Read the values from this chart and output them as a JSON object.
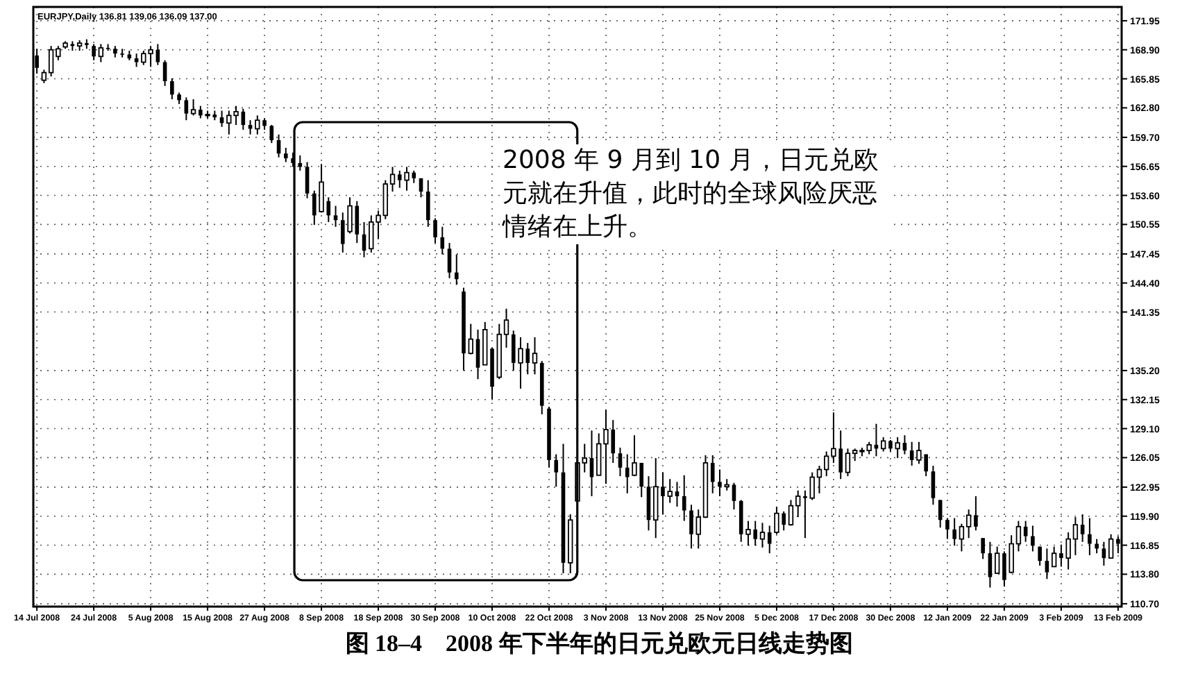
{
  "chart_data": {
    "type": "candlestick",
    "title": "图 18–4　2008 年下半年的日元兑欧元日线走势图",
    "annotations": [
      "EURJPY,Daily 136.81 139.06 136.09 137.00",
      "2008 年 9 月到 10 月，日元兑欧元就在升值，此时的全球风险厌恶情绪在上升。"
    ],
    "color": "#000000",
    "grid": true,
    "ylim": [
      110.4,
      173.4
    ],
    "yticks": [
      171.95,
      {
        "value": 168.9,
        "label": "168.90"
      },
      165.85,
      {
        "value": 162.8,
        "label": "162.80"
      },
      {
        "value": 159.7,
        "label": "159.70"
      },
      156.65,
      {
        "value": 153.6,
        "label": "153.60"
      },
      150.55,
      147.45,
      {
        "value": 144.4,
        "label": "144.40"
      },
      141.35,
      {
        "value": 135.2,
        "label": "135.20"
      },
      132.15,
      {
        "value": 129.1,
        "label": "129.10"
      },
      126.05,
      122.95,
      {
        "value": 119.9,
        "label": "119.90"
      },
      116.85,
      {
        "value": 113.8,
        "label": "113.80"
      },
      {
        "value": 110.7,
        "label": "110.70"
      }
    ],
    "categories": [
      "14 Jul 2008",
      null,
      null,
      null,
      null,
      null,
      null,
      null,
      "24 Jul 2008",
      null,
      null,
      null,
      null,
      null,
      null,
      null,
      "5 Aug 2008",
      null,
      null,
      null,
      null,
      null,
      null,
      null,
      "15 Aug 2008",
      null,
      null,
      null,
      null,
      null,
      null,
      null,
      "27 Aug 2008",
      null,
      null,
      null,
      null,
      null,
      null,
      null,
      "8 Sep 2008",
      null,
      null,
      null,
      null,
      null,
      null,
      null,
      "18 Sep 2008",
      null,
      null,
      null,
      null,
      null,
      null,
      null,
      "30 Sep 2008",
      null,
      null,
      null,
      null,
      null,
      null,
      null,
      "10 Oct 2008",
      null,
      null,
      null,
      null,
      null,
      null,
      null,
      "22 Oct 2008",
      null,
      null,
      null,
      null,
      null,
      null,
      null,
      "3 Nov 2008",
      null,
      null,
      null,
      null,
      null,
      null,
      null,
      "13 Nov 2008",
      null,
      null,
      null,
      null,
      null,
      null,
      null,
      "25 Nov 2008",
      null,
      null,
      null,
      null,
      null,
      null,
      null,
      "5 Dec 2008",
      null,
      null,
      null,
      null,
      null,
      null,
      null,
      "17 Dec 2008",
      null,
      null,
      null,
      null,
      null,
      null,
      null,
      "30 Dec 2008",
      null,
      null,
      null,
      null,
      null,
      null,
      null,
      "12 Jan 2009",
      null,
      null,
      null,
      null,
      null,
      null,
      null,
      "22 Jan 2009",
      null,
      null,
      null,
      null,
      null,
      null,
      null,
      "3 Feb 2009",
      null,
      null,
      null,
      null,
      null,
      null,
      null,
      "13 Feb 2009"
    ],
    "ohlc": [
      [
        168.3,
        169.0,
        166.4,
        167.0
      ],
      [
        165.7,
        166.8,
        165.4,
        166.5
      ],
      [
        166.5,
        169.3,
        166.1,
        168.9
      ],
      [
        168.2,
        169.3,
        167.8,
        169.0
      ],
      [
        169.2,
        169.8,
        169.0,
        169.6
      ],
      [
        169.5,
        169.8,
        168.8,
        169.3
      ],
      [
        169.3,
        169.9,
        168.8,
        169.6
      ],
      [
        169.6,
        170.0,
        169.0,
        169.4
      ],
      [
        169.3,
        169.5,
        167.8,
        168.2
      ],
      [
        168.2,
        169.5,
        167.6,
        169.1
      ],
      [
        169.1,
        169.5,
        168.8,
        169.0
      ],
      [
        169.0,
        169.3,
        168.1,
        168.5
      ],
      [
        168.5,
        169.0,
        168.1,
        168.4
      ],
      [
        168.4,
        168.8,
        167.8,
        168.0
      ],
      [
        168.0,
        168.5,
        167.1,
        167.6
      ],
      [
        167.6,
        168.8,
        167.3,
        168.5
      ],
      [
        168.5,
        169.3,
        167.1,
        168.9
      ],
      [
        168.9,
        169.5,
        167.3,
        167.6
      ],
      [
        167.6,
        167.8,
        165.1,
        165.6
      ],
      [
        165.6,
        165.9,
        163.7,
        164.2
      ],
      [
        164.2,
        164.4,
        163.2,
        163.6
      ],
      [
        163.6,
        163.9,
        161.5,
        162.2
      ],
      [
        162.2,
        163.7,
        162.0,
        162.6
      ],
      [
        162.6,
        163.0,
        161.7,
        162.0
      ],
      [
        162.0,
        162.5,
        161.7,
        162.1
      ],
      [
        162.1,
        162.5,
        161.5,
        161.8
      ],
      [
        161.8,
        162.5,
        160.8,
        161.2
      ],
      [
        161.2,
        162.5,
        160.0,
        162.0
      ],
      [
        162.0,
        163.0,
        161.0,
        162.4
      ],
      [
        162.4,
        162.7,
        160.5,
        161.0
      ],
      [
        161.0,
        161.5,
        160.0,
        160.6
      ],
      [
        160.6,
        162.0,
        160.0,
        161.5
      ],
      [
        161.5,
        161.7,
        160.5,
        160.9
      ],
      [
        160.9,
        161.0,
        159.1,
        159.4
      ],
      [
        159.4,
        160.0,
        157.6,
        158.0
      ],
      [
        158.0,
        158.6,
        157.1,
        157.5
      ],
      [
        157.5,
        158.1,
        156.6,
        157.0
      ],
      [
        157.0,
        157.8,
        156.2,
        156.6
      ],
      [
        156.6,
        157.1,
        153.3,
        153.8
      ],
      [
        153.8,
        154.1,
        150.5,
        151.5
      ],
      [
        151.9,
        156.9,
        151.8,
        155.0
      ],
      [
        153.0,
        153.4,
        150.8,
        151.5
      ],
      [
        151.5,
        152.5,
        150.3,
        151.0
      ],
      [
        151.0,
        151.8,
        147.6,
        148.5
      ],
      [
        149.8,
        153.4,
        149.6,
        152.5
      ],
      [
        152.5,
        153.0,
        148.6,
        149.5
      ],
      [
        149.5,
        150.8,
        147.1,
        147.8
      ],
      [
        148.0,
        151.5,
        147.6,
        150.8
      ],
      [
        150.8,
        152.0,
        149.0,
        151.5
      ],
      [
        151.5,
        155.2,
        151.1,
        154.8
      ],
      [
        154.8,
        156.6,
        154.0,
        155.8
      ],
      [
        155.8,
        156.2,
        154.4,
        155.2
      ],
      [
        155.2,
        156.6,
        154.1,
        156.0
      ],
      [
        156.0,
        156.2,
        154.9,
        155.4
      ],
      [
        155.4,
        155.4,
        153.4,
        154.0
      ],
      [
        154.0,
        155.2,
        150.3,
        151.0
      ],
      [
        151.0,
        151.2,
        148.6,
        149.2
      ],
      [
        149.2,
        150.3,
        147.4,
        148.0
      ],
      [
        148.0,
        148.6,
        144.9,
        145.5
      ],
      [
        145.5,
        147.4,
        144.2,
        144.8
      ],
      [
        143.5,
        143.9,
        135.2,
        137.0
      ],
      [
        137.0,
        140.1,
        136.9,
        138.5
      ],
      [
        138.5,
        139.5,
        134.3,
        135.5
      ],
      [
        135.8,
        140.3,
        135.8,
        139.5
      ],
      [
        137.5,
        137.6,
        132.2,
        133.5
      ],
      [
        134.5,
        140.1,
        134.3,
        139.0
      ],
      [
        139.0,
        141.7,
        137.6,
        140.5
      ],
      [
        139.0,
        139.4,
        135.2,
        136.0
      ],
      [
        136.0,
        138.7,
        133.3,
        137.5
      ],
      [
        137.5,
        138.1,
        134.8,
        136.0
      ],
      [
        136.0,
        138.7,
        134.8,
        137.0
      ],
      [
        136.0,
        136.2,
        130.6,
        131.5
      ],
      [
        131.2,
        131.4,
        125.0,
        125.8
      ],
      [
        125.8,
        126.4,
        123.0,
        124.5
      ],
      [
        124.5,
        127.5,
        113.9,
        115.0
      ],
      [
        115.0,
        120.1,
        113.9,
        119.5
      ],
      [
        121.5,
        127.1,
        121.3,
        125.5
      ],
      [
        125.5,
        127.5,
        124.5,
        126.0
      ],
      [
        126.0,
        128.9,
        122.0,
        124.0
      ],
      [
        124.2,
        128.6,
        124.2,
        127.5
      ],
      [
        127.5,
        131.1,
        123.3,
        129.0
      ],
      [
        129.0,
        130.0,
        125.5,
        126.5
      ],
      [
        126.5,
        127.1,
        124.1,
        125.0
      ],
      [
        125.0,
        126.4,
        122.3,
        124.0
      ],
      [
        124.2,
        128.4,
        124.1,
        125.5
      ],
      [
        125.5,
        125.5,
        121.9,
        123.0
      ],
      [
        123.0,
        124.1,
        118.4,
        119.5
      ],
      [
        119.5,
        126.0,
        117.6,
        123.0
      ],
      [
        123.0,
        124.5,
        120.1,
        122.0
      ],
      [
        122.0,
        123.8,
        121.3,
        122.5
      ],
      [
        122.5,
        123.5,
        120.9,
        122.0
      ],
      [
        122.0,
        124.2,
        119.4,
        120.5
      ],
      [
        120.5,
        121.1,
        116.5,
        118.0
      ],
      [
        118.0,
        120.6,
        116.5,
        119.8
      ],
      [
        119.8,
        126.3,
        119.7,
        125.5
      ],
      [
        125.5,
        126.3,
        122.3,
        123.5
      ],
      [
        123.5,
        124.8,
        122.0,
        123.0
      ],
      [
        123.0,
        123.8,
        122.6,
        123.2
      ],
      [
        123.2,
        123.4,
        120.6,
        121.5
      ],
      [
        121.5,
        121.6,
        117.2,
        118.0
      ],
      [
        118.0,
        119.4,
        116.8,
        118.5
      ],
      [
        118.5,
        119.4,
        116.8,
        117.5
      ],
      [
        117.5,
        119.2,
        116.6,
        118.2
      ],
      [
        118.2,
        118.9,
        116.0,
        117.0
      ],
      [
        118.2,
        120.9,
        118.0,
        120.2
      ],
      [
        120.2,
        120.4,
        118.4,
        119.0
      ],
      [
        119.0,
        121.6,
        118.9,
        121.0
      ],
      [
        121.0,
        122.6,
        119.8,
        122.0
      ],
      [
        122.0,
        122.6,
        117.6,
        121.8
      ],
      [
        121.8,
        124.5,
        121.6,
        124.0
      ],
      [
        124.0,
        125.2,
        122.3,
        124.8
      ],
      [
        124.8,
        126.7,
        124.1,
        126.2
      ],
      [
        126.2,
        130.8,
        125.5,
        127.0
      ],
      [
        127.0,
        128.9,
        123.8,
        124.5
      ],
      [
        124.5,
        127.0,
        124.1,
        126.5
      ],
      [
        126.5,
        127.0,
        125.7,
        126.8
      ],
      [
        126.8,
        127.1,
        126.2,
        126.8
      ],
      [
        126.8,
        127.7,
        126.4,
        127.4
      ],
      [
        127.4,
        129.6,
        126.2,
        127.0
      ],
      [
        127.0,
        128.2,
        126.7,
        127.8
      ],
      [
        127.8,
        127.9,
        126.7,
        127.0
      ],
      [
        127.0,
        128.2,
        126.0,
        127.6
      ],
      [
        127.6,
        128.4,
        126.4,
        126.8
      ],
      [
        126.8,
        127.7,
        125.2,
        125.8
      ],
      [
        125.8,
        127.7,
        125.4,
        126.8
      ],
      [
        126.4,
        126.4,
        124.1,
        124.6
      ],
      [
        124.6,
        125.2,
        121.1,
        121.8
      ],
      [
        121.6,
        121.6,
        118.7,
        119.5
      ],
      [
        119.5,
        119.7,
        117.5,
        118.5
      ],
      [
        118.5,
        119.7,
        116.8,
        117.5
      ],
      [
        117.5,
        119.1,
        116.2,
        118.8
      ],
      [
        118.8,
        120.6,
        117.6,
        120.0
      ],
      [
        120.0,
        122.0,
        118.4,
        118.8
      ],
      [
        117.6,
        117.6,
        115.4,
        116.0
      ],
      [
        116.0,
        117.2,
        112.4,
        113.5
      ],
      [
        113.9,
        116.7,
        113.9,
        116.0
      ],
      [
        116.0,
        116.2,
        112.5,
        113.2
      ],
      [
        114.0,
        117.9,
        113.9,
        117.0
      ],
      [
        117.0,
        119.4,
        116.2,
        118.8
      ],
      [
        118.8,
        119.4,
        117.2,
        117.8
      ],
      [
        117.8,
        118.9,
        116.2,
        116.8
      ],
      [
        116.7,
        116.7,
        114.7,
        115.2
      ],
      [
        115.2,
        116.5,
        113.3,
        114.0
      ],
      [
        114.6,
        116.7,
        114.6,
        116.0
      ],
      [
        116.0,
        116.9,
        114.6,
        115.5
      ],
      [
        115.5,
        118.2,
        114.3,
        117.5
      ],
      [
        117.5,
        119.8,
        115.8,
        119.0
      ],
      [
        119.0,
        120.1,
        117.2,
        118.0
      ],
      [
        118.0,
        119.7,
        115.8,
        117.0
      ],
      [
        117.0,
        117.5,
        116.0,
        116.5
      ],
      [
        116.5,
        117.2,
        114.7,
        115.5
      ],
      [
        115.5,
        118.0,
        115.5,
        117.5
      ],
      [
        117.5,
        117.8,
        116.0,
        117.0
      ]
    ]
  }
}
